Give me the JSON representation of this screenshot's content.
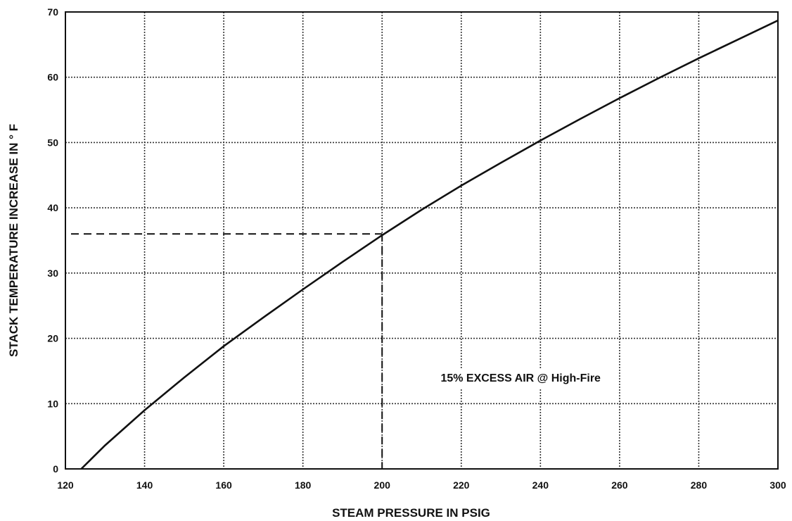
{
  "chart_data": {
    "type": "line",
    "xlabel": "STEAM PRESSURE IN PSIG",
    "ylabel": "STACK TEMPERATURE INCREASE IN ° F",
    "xlim": [
      120,
      300
    ],
    "ylim": [
      0,
      70
    ],
    "x_ticks": [
      120,
      140,
      160,
      180,
      200,
      220,
      240,
      260,
      280,
      300
    ],
    "y_ticks": [
      0,
      10,
      20,
      30,
      40,
      50,
      60,
      70
    ],
    "grid": true,
    "series": [
      {
        "x": [
          124,
          130,
          140,
          150,
          160,
          170,
          180,
          190,
          200,
          210,
          220,
          230,
          240,
          250,
          260,
          270,
          280,
          290,
          300
        ],
        "y": [
          0,
          3.6,
          9,
          14,
          18.8,
          23.2,
          27.5,
          31.7,
          35.8,
          39.7,
          43.4,
          46.9,
          50.3,
          53.6,
          56.8,
          59.9,
          62.9,
          65.8,
          68.7
        ]
      }
    ],
    "reference_point": {
      "x": 200,
      "y": 36
    },
    "annotations": [
      {
        "text": "15% EXCESS AIR @ High-Fire",
        "x": 235,
        "y": 14
      }
    ]
  }
}
